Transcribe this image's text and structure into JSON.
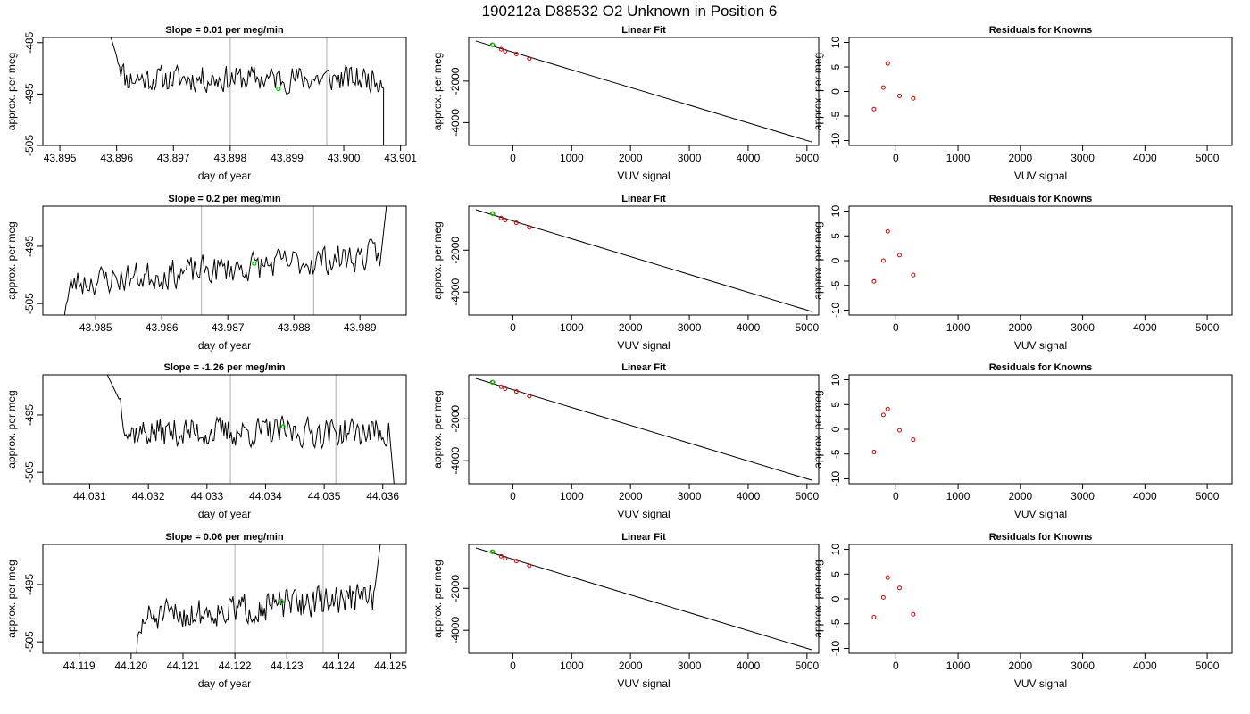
{
  "figure": {
    "title": "190212a     D88532   O2 Unknown in Position  6"
  },
  "chart_data": [
    {
      "type": "line",
      "title": "Slope =  0.01  per meg/min",
      "xlabel": "day of year",
      "ylabel": "approx. per meg",
      "xlim": [
        43.8947,
        43.9011
      ],
      "ylim": [
        -505,
        -484
      ],
      "xticks": [
        "43.895",
        "43.896",
        "43.897",
        "43.898",
        "43.899",
        "43.900",
        "43.901"
      ],
      "yticks": [
        "-505",
        "-495",
        "-485"
      ],
      "vlines": [
        43.898,
        43.8997
      ],
      "x_start": 43.896,
      "x_end": 43.9007,
      "entry": {
        "x": 43.8959,
        "y": -484
      },
      "exit": {
        "x": 43.9007,
        "y": -507
      },
      "baseline": -492,
      "trend": 0.0,
      "marker": {
        "x": 43.89885,
        "y": -494,
        "color": "#00cc00"
      },
      "seed": 11
    },
    {
      "type": "line",
      "title": "Slope =  0.2  per meg/min",
      "xlabel": "day of year",
      "ylabel": "approx. per meg",
      "xlim": [
        43.9842,
        43.9897
      ],
      "ylim": [
        -507,
        -488
      ],
      "xticks": [
        "43.985",
        "43.986",
        "43.987",
        "43.988",
        "43.989"
      ],
      "yticks": [
        "-505",
        "-495"
      ],
      "vlines": [
        43.9866,
        43.9883
      ],
      "x_start": 43.9845,
      "x_end": 43.9893,
      "entry": {
        "x": 43.9844,
        "y": -508
      },
      "exit": {
        "x": 43.9894,
        "y": -488
      },
      "baseline": -499,
      "trend": 2.5,
      "marker": {
        "x": 43.9874,
        "y": -498,
        "color": "#00cc00"
      },
      "seed": 23
    },
    {
      "type": "line",
      "title": "Slope =  -1.26  per meg/min",
      "xlabel": "day of year",
      "ylabel": "approx. per meg",
      "xlim": [
        44.0302,
        44.0364
      ],
      "ylim": [
        -507,
        -488
      ],
      "xticks": [
        "44.031",
        "44.032",
        "44.033",
        "44.034",
        "44.035",
        "44.036"
      ],
      "yticks": [
        "-505",
        "-495"
      ],
      "vlines": [
        44.0334,
        44.0352
      ],
      "x_start": 44.0315,
      "x_end": 44.0361,
      "entry": {
        "x": 44.0313,
        "y": -488
      },
      "exit": {
        "x": 44.0362,
        "y": -508
      },
      "baseline": -498,
      "trend": 0.0,
      "marker": {
        "x": 44.0343,
        "y": -497,
        "color": "#00cc00"
      },
      "seed": 37
    },
    {
      "type": "line",
      "title": "Slope =  0.06  per meg/min",
      "xlabel": "day of year",
      "ylabel": "approx. per meg",
      "xlim": [
        44.1183,
        44.1253
      ],
      "ylim": [
        -507,
        -488
      ],
      "xticks": [
        "44.119",
        "44.120",
        "44.121",
        "44.122",
        "44.123",
        "44.124",
        "44.125"
      ],
      "yticks": [
        "-505",
        "-495"
      ],
      "vlines": [
        44.122,
        44.1237
      ],
      "x_start": 44.1201,
      "x_end": 44.1247,
      "entry": {
        "x": 44.12,
        "y": -508
      },
      "exit": {
        "x": 44.1248,
        "y": -488
      },
      "baseline": -499,
      "trend": 2.0,
      "marker": {
        "x": 44.1229,
        "y": -498,
        "color": "#00cc00"
      },
      "seed": 51
    },
    {
      "type": "scatter",
      "title": "Linear Fit",
      "xlabel": "VUV signal",
      "ylabel": "approx. per meg",
      "xlim": [
        -750,
        5200
      ],
      "ylim": [
        -5100,
        100
      ],
      "xticks": [
        "0",
        "1000",
        "2000",
        "3000",
        "4000",
        "5000"
      ],
      "yticks": [
        "-4000",
        "-2000"
      ],
      "fit_line": {
        "x": [
          -630,
          5080
        ],
        "y": [
          -70,
          -4930
        ]
      },
      "knowns": {
        "x": [
          -350,
          -200,
          -130,
          60,
          280
        ],
        "y": [
          -250,
          -465,
          -560,
          -695,
          -915
        ]
      },
      "unknown": {
        "x": -340,
        "y": -260
      }
    },
    {
      "type": "scatter",
      "title": "Linear Fit",
      "xlabel": "VUV signal",
      "ylabel": "approx. per meg",
      "xlim": [
        -750,
        5200
      ],
      "ylim": [
        -5100,
        100
      ],
      "xticks": [
        "0",
        "1000",
        "2000",
        "3000",
        "4000",
        "5000"
      ],
      "yticks": [
        "-4000",
        "-2000"
      ],
      "fit_line": {
        "x": [
          -630,
          5080
        ],
        "y": [
          -70,
          -4930
        ]
      },
      "knowns": {
        "x": [
          -350,
          -200,
          -130,
          60,
          280
        ],
        "y": [
          -250,
          -465,
          -560,
          -695,
          -915
        ]
      },
      "unknown": {
        "x": -340,
        "y": -260
      }
    },
    {
      "type": "scatter",
      "title": "Linear Fit",
      "xlabel": "VUV signal",
      "ylabel": "approx. per meg",
      "xlim": [
        -750,
        5200
      ],
      "ylim": [
        -5100,
        100
      ],
      "xticks": [
        "0",
        "1000",
        "2000",
        "3000",
        "4000",
        "5000"
      ],
      "yticks": [
        "-4000",
        "-2000"
      ],
      "fit_line": {
        "x": [
          -630,
          5080
        ],
        "y": [
          -70,
          -4930
        ]
      },
      "knowns": {
        "x": [
          -350,
          -200,
          -130,
          60,
          280
        ],
        "y": [
          -250,
          -465,
          -560,
          -695,
          -915
        ]
      },
      "unknown": {
        "x": -340,
        "y": -260
      }
    },
    {
      "type": "scatter",
      "title": "Linear Fit",
      "xlabel": "VUV signal",
      "ylabel": "approx. per meg",
      "xlim": [
        -750,
        5200
      ],
      "ylim": [
        -5100,
        100
      ],
      "xticks": [
        "0",
        "1000",
        "2000",
        "3000",
        "4000",
        "5000"
      ],
      "yticks": [
        "-4000",
        "-2000"
      ],
      "fit_line": {
        "x": [
          -630,
          5080
        ],
        "y": [
          -70,
          -4930
        ]
      },
      "knowns": {
        "x": [
          -350,
          -200,
          -130,
          60,
          280
        ],
        "y": [
          -250,
          -465,
          -560,
          -695,
          -915
        ]
      },
      "unknown": {
        "x": -340,
        "y": -260
      }
    },
    {
      "type": "scatter",
      "title": "Residuals for Knowns",
      "xlabel": "VUV signal",
      "ylabel": "approx. per meg",
      "xlim": [
        -750,
        5400
      ],
      "ylim": [
        -11,
        11
      ],
      "xticks": [
        "0",
        "1000",
        "2000",
        "3000",
        "4000",
        "5000"
      ],
      "yticks": [
        "-10",
        "-5",
        "0",
        "5",
        "10"
      ],
      "points": {
        "x": [
          -350,
          -200,
          -130,
          60,
          280
        ],
        "y": [
          -3.6,
          0.8,
          5.7,
          -0.9,
          -1.4
        ]
      }
    },
    {
      "type": "scatter",
      "title": "Residuals for Knowns",
      "xlabel": "VUV signal",
      "ylabel": "approx. per meg",
      "xlim": [
        -750,
        5400
      ],
      "ylim": [
        -11,
        11
      ],
      "xticks": [
        "0",
        "1000",
        "2000",
        "3000",
        "4000",
        "5000"
      ],
      "yticks": [
        "-10",
        "-5",
        "0",
        "5",
        "10"
      ],
      "points": {
        "x": [
          -350,
          -200,
          -130,
          60,
          280
        ],
        "y": [
          -4.2,
          0.0,
          5.9,
          1.1,
          -2.9
        ]
      }
    },
    {
      "type": "scatter",
      "title": "Residuals for Knowns",
      "xlabel": "VUV signal",
      "ylabel": "approx. per meg",
      "xlim": [
        -750,
        5400
      ],
      "ylim": [
        -11,
        11
      ],
      "xticks": [
        "0",
        "1000",
        "2000",
        "3000",
        "4000",
        "5000"
      ],
      "yticks": [
        "-10",
        "-5",
        "0",
        "5",
        "10"
      ],
      "points": {
        "x": [
          -350,
          -200,
          -130,
          60,
          280
        ],
        "y": [
          -4.6,
          2.9,
          4.1,
          -0.2,
          -2.1
        ]
      }
    },
    {
      "type": "scatter",
      "title": "Residuals for Knowns",
      "xlabel": "VUV signal",
      "ylabel": "approx. per meg",
      "xlim": [
        -750,
        5400
      ],
      "ylim": [
        -11,
        11
      ],
      "xticks": [
        "0",
        "1000",
        "2000",
        "3000",
        "4000",
        "5000"
      ],
      "yticks": [
        "-10",
        "-5",
        "0",
        "5",
        "10"
      ],
      "points": {
        "x": [
          -350,
          -200,
          -130,
          60,
          280
        ],
        "y": [
          -3.7,
          0.3,
          4.3,
          2.2,
          -3.1
        ]
      }
    }
  ],
  "colors": {
    "trace": "#000000",
    "marker_unknown": "#00cc00",
    "marker_known": "#cc0000",
    "reference_line": "#bbbbbb",
    "axes": "#000000"
  }
}
